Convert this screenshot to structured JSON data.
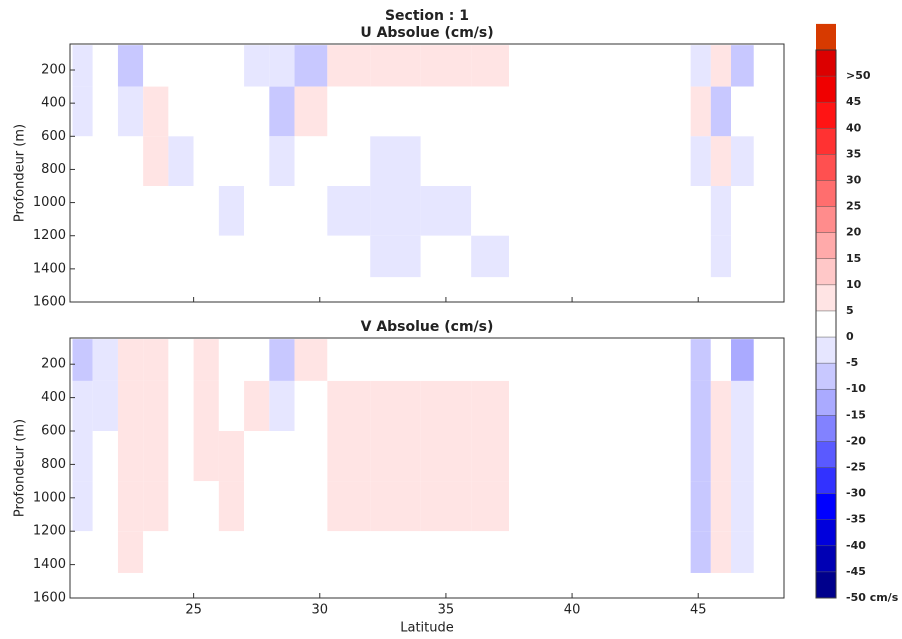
{
  "title": "Section : 1",
  "xlabel": "Latitude",
  "colorbar": {
    "clim": [
      -50,
      55
    ],
    "ticks": [
      {
        "value": -50,
        "label": "-50 cm/s"
      },
      -45,
      -40,
      -35,
      -30,
      -25,
      -20,
      -15,
      -10,
      -5,
      0,
      5,
      10,
      15,
      20,
      25,
      30,
      35,
      40,
      45,
      {
        "value": 50,
        "label": ">50"
      }
    ],
    "colors": [
      "#00008c",
      "#0000b4",
      "#0000dc",
      "#0000ff",
      "#3232ff",
      "#5a5aff",
      "#8282ff",
      "#aaaaff",
      "#c8c8ff",
      "#e6e6ff",
      "#ffffff",
      "#ffe4e4",
      "#ffc8c8",
      "#ffaaaa",
      "#ff8c8c",
      "#ff6e6e",
      "#ff5050",
      "#ff3232",
      "#ff1414",
      "#f00000",
      "#dc0000",
      "#d73a00"
    ]
  },
  "chart_data": [
    {
      "type": "heatmap",
      "title": "U Absolue (cm/s)",
      "ylabel": "Profondeur (m)",
      "show_xticklabels": false,
      "x": [
        20.2,
        21,
        22,
        23,
        24,
        25,
        26,
        27,
        28,
        29,
        30.3,
        32,
        34,
        36,
        37.5,
        44.7,
        45.5,
        46.3,
        47.2
      ],
      "y": [
        50,
        300,
        600,
        900,
        1200,
        1450
      ],
      "values": [
        [
          -5,
          2,
          -8,
          4,
          3,
          2,
          1,
          -2,
          -3,
          -10,
          8,
          8,
          8,
          6,
          null,
          -4,
          5,
          -6
        ],
        [
          -3,
          3,
          -2,
          6,
          2,
          3,
          4,
          1,
          -6,
          5,
          3,
          3,
          3,
          3,
          null,
          6,
          -8,
          4
        ],
        [
          1,
          3,
          2,
          5,
          -2,
          4,
          3,
          2,
          -3,
          4,
          1,
          -1,
          1,
          2,
          null,
          -3,
          5,
          -4
        ],
        [
          2,
          3,
          1,
          2,
          3,
          2,
          -2,
          3,
          1,
          3,
          -2,
          -1,
          -2,
          2,
          null,
          4,
          -3,
          2
        ],
        [
          3,
          2,
          2,
          3,
          1,
          3,
          2,
          2,
          3,
          2,
          1,
          -2,
          1,
          -1,
          null,
          3,
          -2,
          1
        ]
      ],
      "xlim": [
        20.1,
        48.4
      ],
      "ylim": [
        43,
        1600
      ],
      "xticks": [
        25,
        30,
        35,
        40,
        45
      ],
      "yticks": [
        200,
        400,
        600,
        800,
        1000,
        1200,
        1400,
        1600
      ]
    },
    {
      "type": "heatmap",
      "title": "V Absolue (cm/s)",
      "ylabel": "Profondeur (m)",
      "show_xticklabels": true,
      "x": [
        20.2,
        21,
        22,
        23,
        24,
        25,
        26,
        27,
        28,
        29,
        30.3,
        32,
        34,
        36,
        37.5,
        44.7,
        45.5,
        46.3,
        47.2
      ],
      "y": [
        50,
        300,
        600,
        900,
        1200,
        1450
      ],
      "values": [
        [
          -8,
          -4,
          6,
          8,
          2,
          5,
          4,
          3,
          -6,
          9,
          4,
          4,
          4,
          4,
          null,
          -10,
          4,
          -12
        ],
        [
          -4,
          -3,
          7,
          6,
          3,
          6,
          4,
          5,
          -3,
          3,
          6,
          6,
          6,
          6,
          null,
          -6,
          8,
          -5
        ],
        [
          -2,
          3,
          6,
          5,
          4,
          5,
          6,
          4,
          2,
          3,
          6,
          6,
          6,
          6,
          null,
          -7,
          6,
          -3
        ],
        [
          -1,
          4,
          6,
          5,
          4,
          4,
          5,
          3,
          3,
          2,
          6,
          6,
          6,
          6,
          null,
          -8,
          7,
          -4
        ],
        [
          2,
          3,
          5,
          4,
          3,
          4,
          3,
          2,
          2,
          2,
          4,
          4,
          4,
          4,
          null,
          -9,
          5,
          -3
        ]
      ],
      "xlim": [
        20.1,
        48.4
      ],
      "ylim": [
        43,
        1600
      ],
      "xticks": [
        25,
        30,
        35,
        40,
        45
      ],
      "yticks": [
        200,
        400,
        600,
        800,
        1000,
        1200,
        1400,
        1600
      ]
    }
  ]
}
